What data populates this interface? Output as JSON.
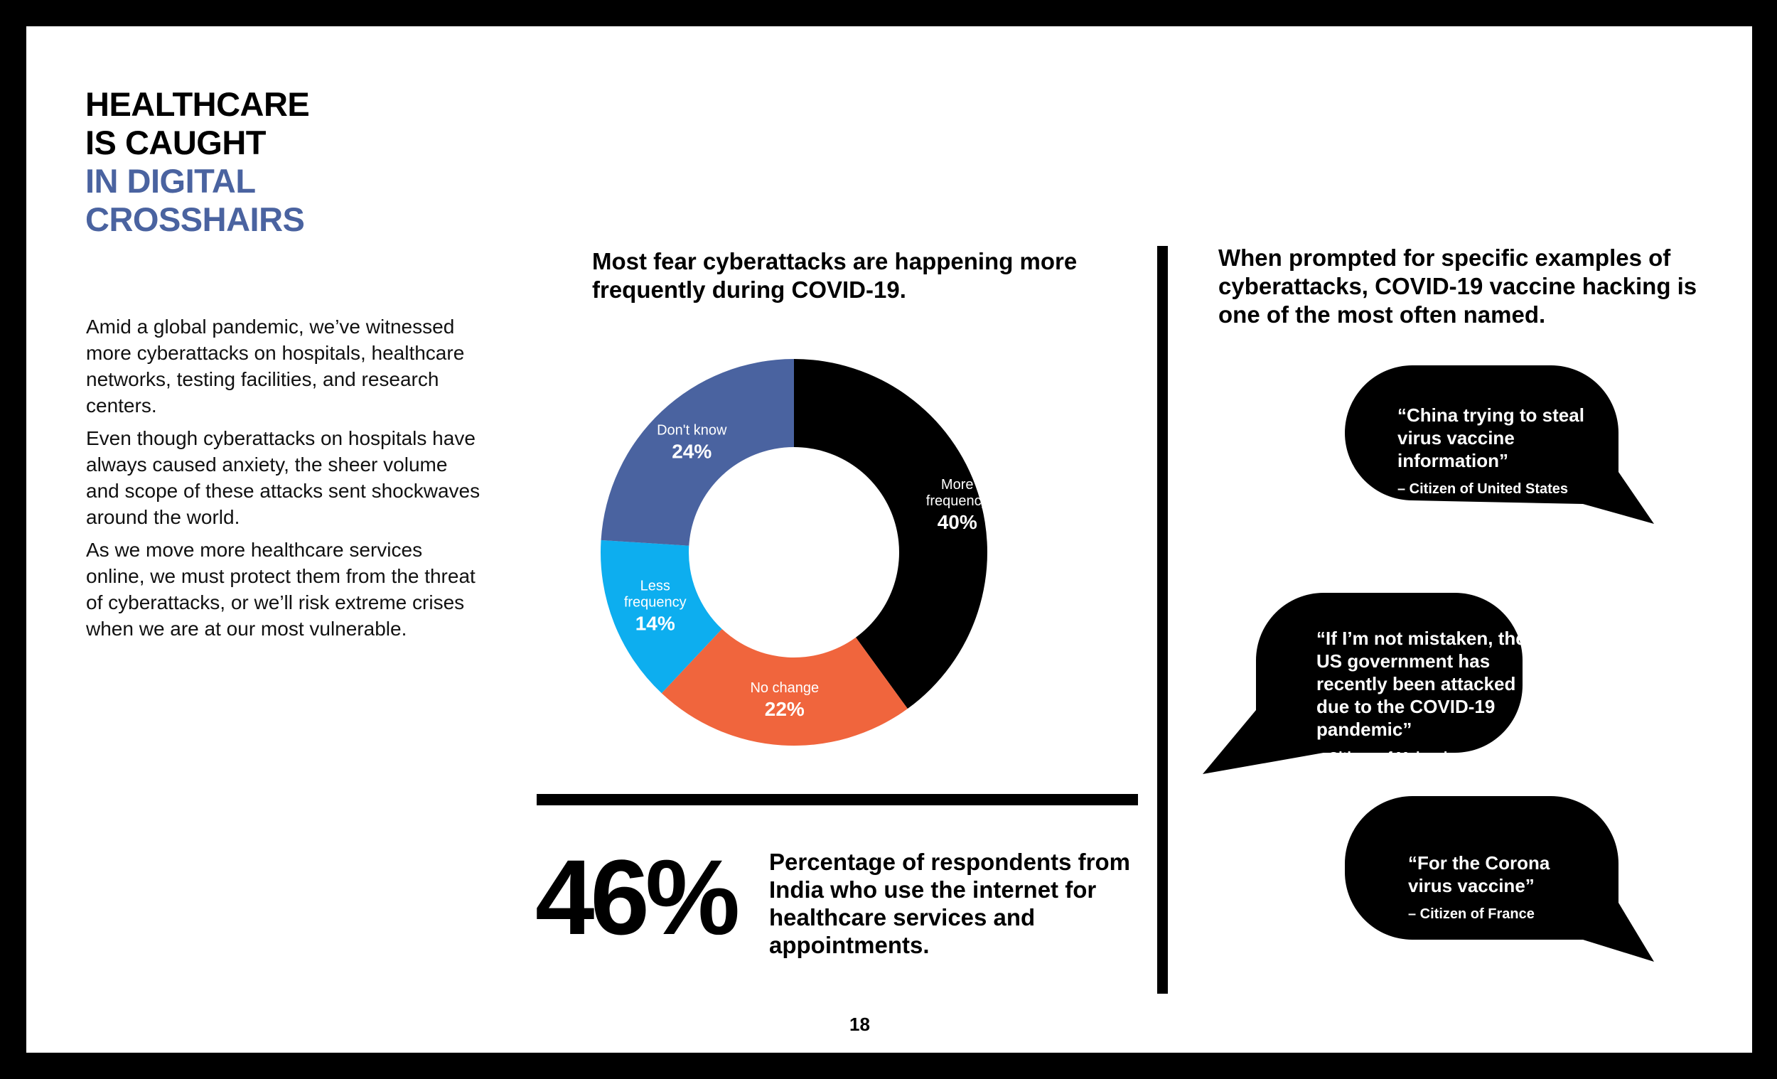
{
  "title": {
    "line1": "HEALTHCARE",
    "line2": "IS CAUGHT",
    "line3": "IN DIGITAL",
    "line4": "CROSSHAIRS"
  },
  "intro": {
    "p1": "Amid a global pandemic, we’ve witnessed more cyberattacks on hospitals, healthcare networks, testing facilities, and research centers.",
    "p2": "Even though cyberattacks on hospitals have always caused anxiety, the sheer volume and scope of these attacks sent shockwaves around the world.",
    "p3": "As we move more healthcare services online, we must protect them from the threat of cyberattacks, or we’ll risk extreme crises when we are at our most vulnerable."
  },
  "chart_data": {
    "type": "pie",
    "title": "Most fear cyberattacks are happening more frequently during COVID-19.",
    "donut": true,
    "slices": [
      {
        "label": "More frequency",
        "value": 40,
        "value_label": "40%",
        "color": "#000000"
      },
      {
        "label": "No change",
        "value": 22,
        "value_label": "22%",
        "color": "#F0653D"
      },
      {
        "label": "Less frequency",
        "value": 14,
        "value_label": "14%",
        "color": "#0DAEEF"
      },
      {
        "label": "Don't know",
        "value": 24,
        "value_label": "24%",
        "color": "#4A63A0"
      }
    ]
  },
  "stat": {
    "value": "46%",
    "description": "Percentage of respondents from India who use the internet for healthcare services and appointments."
  },
  "quotes": {
    "heading": "When prompted for specific examples of cyberattacks, COVID-19 vaccine hacking is one of the most often named.",
    "items": [
      {
        "text": "“China trying to steal virus vaccine information”",
        "source": "– Citizen of United States"
      },
      {
        "text": "“If I’m not mistaken, the US government has recently been attacked due to the COVID-19 pandemic”",
        "source": "– Citizen of Malaysia"
      },
      {
        "text": "“For the Corona virus vaccine”",
        "source": "– Citizen of France"
      }
    ]
  },
  "page_number": "18",
  "colors": {
    "accent_blue": "#4A63A0",
    "orange": "#F0653D",
    "cyan": "#0DAEEF",
    "black": "#000000"
  }
}
